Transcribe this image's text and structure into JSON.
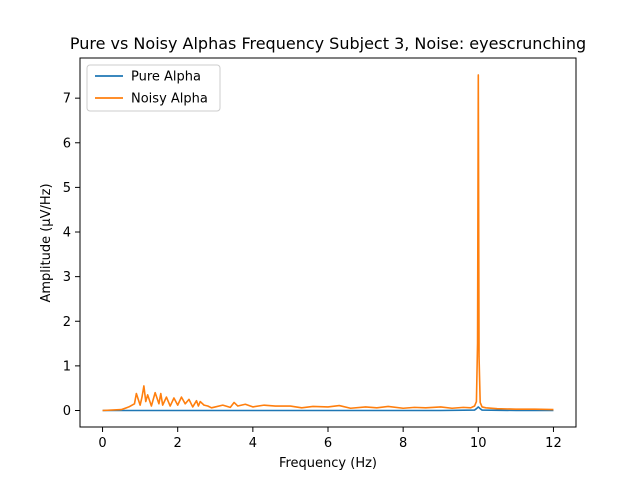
{
  "chart_data": {
    "type": "line",
    "title": "Pure vs Noisy Alphas Frequency Subject 3, Noise: eyescrunching",
    "xlabel": "Frequency (Hz)",
    "ylabel": "Amplitude (μV/Hz)",
    "xlim": [
      -0.6,
      12.6
    ],
    "ylim": [
      -0.37,
      7.9
    ],
    "xticks": [
      0,
      2,
      4,
      6,
      8,
      10,
      12
    ],
    "yticks": [
      0,
      1,
      2,
      3,
      4,
      5,
      6,
      7
    ],
    "xtick_labels": [
      "0",
      "2",
      "4",
      "6",
      "8",
      "10",
      "12"
    ],
    "ytick_labels": [
      "0",
      "1",
      "2",
      "3",
      "4",
      "5",
      "6",
      "7"
    ],
    "grid": false,
    "legend": {
      "placement": "upper-left"
    },
    "series": [
      {
        "name": "Pure Alpha",
        "color": "#1f77b4",
        "x": [
          0,
          1,
          2,
          3,
          4,
          5,
          6,
          7,
          8,
          9,
          9.9,
          9.95,
          10.0,
          10.05,
          10.1,
          11,
          12
        ],
        "y": [
          0.0,
          0.0,
          0.0,
          0.0,
          0.0,
          0.0,
          0.0,
          0.0,
          0.0,
          0.0,
          0.01,
          0.04,
          0.08,
          0.04,
          0.01,
          0.0,
          0.0
        ]
      },
      {
        "name": "Noisy Alpha",
        "color": "#ff7f0e",
        "x": [
          0,
          0.5,
          0.7,
          0.85,
          0.9,
          1.0,
          1.05,
          1.1,
          1.15,
          1.2,
          1.3,
          1.4,
          1.5,
          1.55,
          1.6,
          1.7,
          1.8,
          1.9,
          2.0,
          2.1,
          2.2,
          2.3,
          2.4,
          2.5,
          2.55,
          2.6,
          2.7,
          2.8,
          2.9,
          3.0,
          3.2,
          3.4,
          3.5,
          3.6,
          3.8,
          4.0,
          4.3,
          4.6,
          5.0,
          5.3,
          5.6,
          6.0,
          6.3,
          6.6,
          7.0,
          7.3,
          7.6,
          8.0,
          8.3,
          8.6,
          9.0,
          9.3,
          9.6,
          9.8,
          9.9,
          9.95,
          9.98,
          10.0,
          10.02,
          10.05,
          10.1,
          10.2,
          10.5,
          11.0,
          11.5,
          12.0
        ],
        "y": [
          0.0,
          0.02,
          0.08,
          0.15,
          0.38,
          0.12,
          0.3,
          0.55,
          0.2,
          0.35,
          0.1,
          0.4,
          0.15,
          0.38,
          0.12,
          0.3,
          0.1,
          0.28,
          0.12,
          0.3,
          0.15,
          0.25,
          0.08,
          0.22,
          0.1,
          0.2,
          0.12,
          0.1,
          0.06,
          0.08,
          0.12,
          0.07,
          0.18,
          0.1,
          0.14,
          0.08,
          0.12,
          0.1,
          0.1,
          0.06,
          0.09,
          0.08,
          0.11,
          0.05,
          0.08,
          0.06,
          0.09,
          0.05,
          0.07,
          0.06,
          0.08,
          0.05,
          0.07,
          0.06,
          0.1,
          0.2,
          1.5,
          7.52,
          1.2,
          0.18,
          0.08,
          0.06,
          0.04,
          0.03,
          0.03,
          0.02
        ]
      }
    ]
  }
}
